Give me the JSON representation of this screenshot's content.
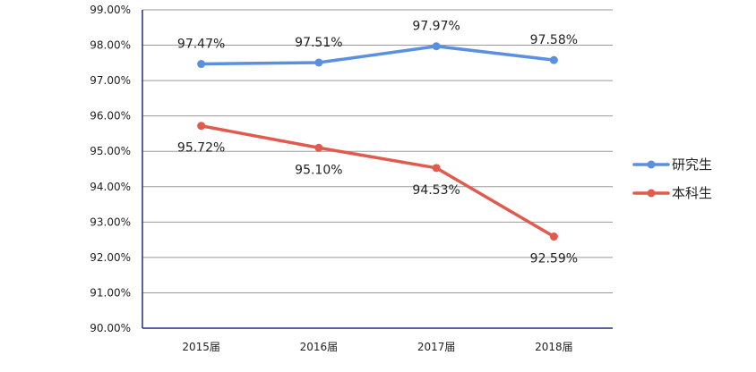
{
  "chart_data": {
    "type": "line",
    "title": "",
    "xlabel": "",
    "ylabel": "",
    "categories": [
      "2015届",
      "2016届",
      "2017届",
      "2018届"
    ],
    "ylim": [
      90,
      99
    ],
    "y_tick_labels": [
      "90.00%",
      "91.00%",
      "92.00%",
      "93.00%",
      "94.00%",
      "95.00%",
      "96.00%",
      "97.00%",
      "98.00%",
      "99.00%"
    ],
    "grid": true,
    "legend_position": "right",
    "series": [
      {
        "name": "研究生",
        "color": "#5B8FE0",
        "values": [
          97.47,
          97.51,
          97.97,
          97.58
        ],
        "labels": [
          "97.47%",
          "97.51%",
          "97.97%",
          "97.58%"
        ]
      },
      {
        "name": "本科生",
        "color": "#E05A4E",
        "values": [
          95.72,
          95.1,
          94.53,
          92.59
        ],
        "labels": [
          "95.72%",
          "95.10%",
          "94.53%",
          "92.59%"
        ]
      }
    ]
  }
}
